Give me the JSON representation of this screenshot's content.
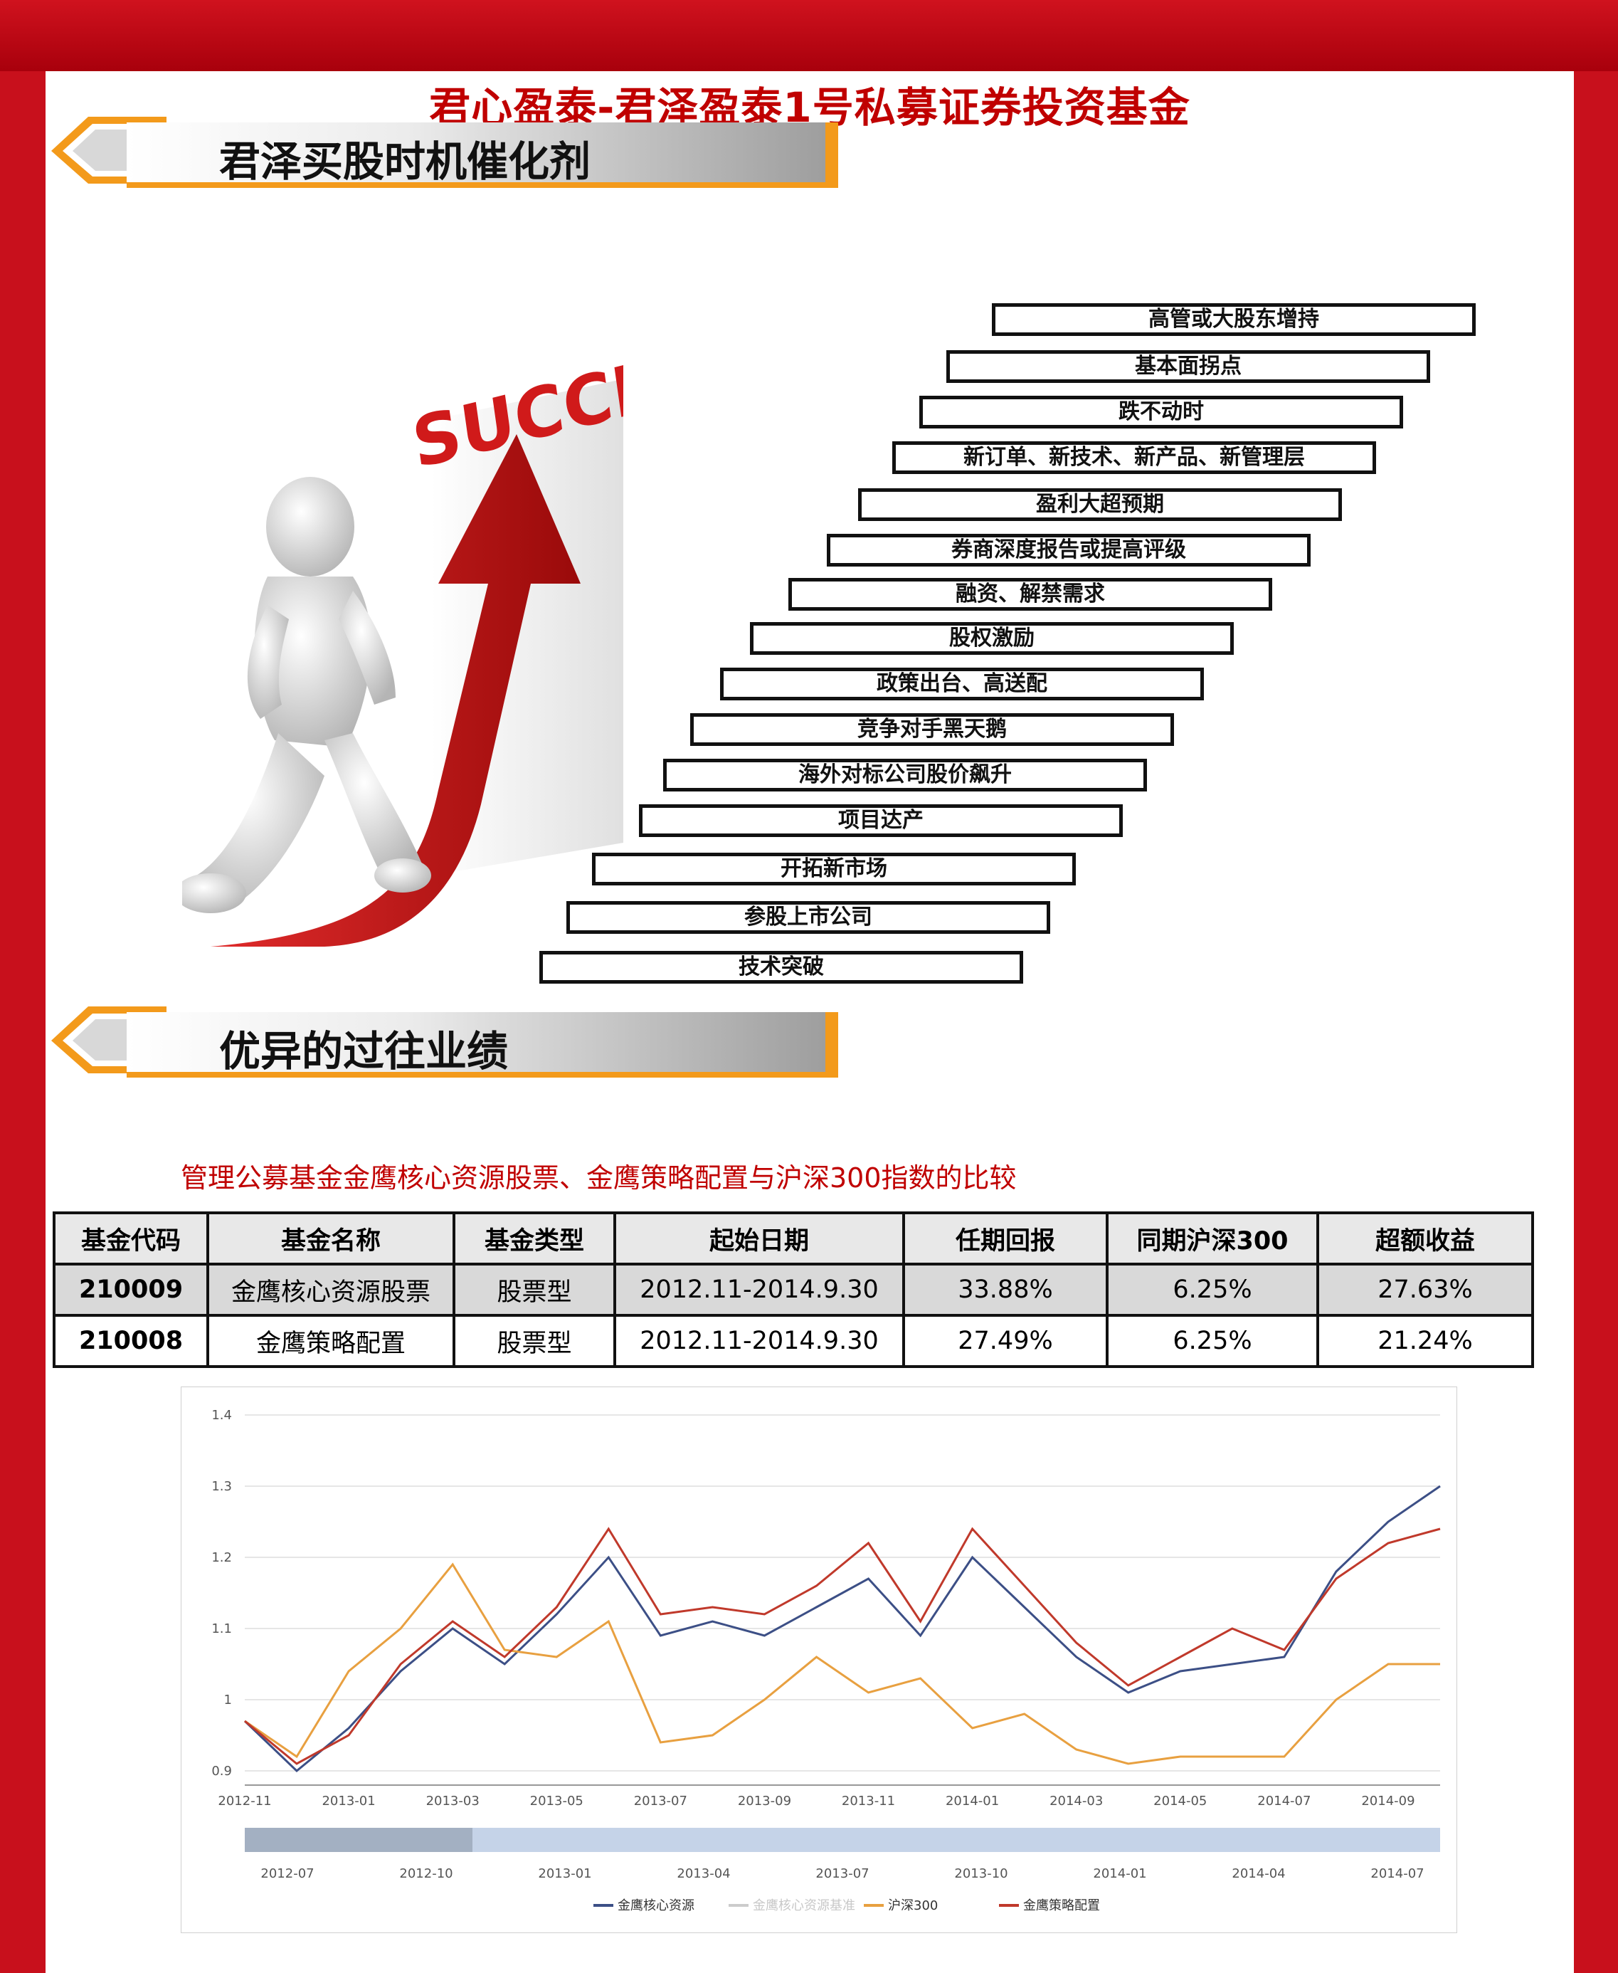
{
  "title": "君心盈泰-君泽盈泰1号私募证券投资基金",
  "section1": {
    "title": "君泽买股时机催化剂"
  },
  "illustration": {
    "sign_text": "SUCCESS"
  },
  "catalysts": [
    "高管或大股东增持",
    "基本面拐点",
    "跌不动时",
    "新订单、新技术、新产品、新管理层",
    "盈利大超预期",
    "券商深度报告或提高评级",
    "融资、解禁需求",
    "股权激励",
    "政策出台、高送配",
    "竞争对手黑天鹅",
    "海外对标公司股价飙升",
    "项目达产",
    "开拓新市场",
    "参股上市公司",
    "技术突破"
  ],
  "section2": {
    "title": "优异的过往业绩"
  },
  "comparison": {
    "subtitle": "管理公募基金金鹰核心资源股票、金鹰策略配置与沪深300指数的比较",
    "headers": [
      "基金代码",
      "基金名称",
      "基金类型",
      "起始日期",
      "任期回报",
      "同期沪深300",
      "超额收益"
    ],
    "rows": [
      [
        "210009",
        "金鹰核心资源股票",
        "股票型",
        "2012.11-2014.9.30",
        "33.88%",
        "6.25%",
        "27.63%"
      ],
      [
        "210008",
        "金鹰策略配置",
        "股票型",
        "2012.11-2014.9.30",
        "27.49%",
        "6.25%",
        "21.24%"
      ]
    ]
  },
  "chart_data": {
    "type": "line",
    "x": [
      "2012-11",
      "2012-12",
      "2013-01",
      "2013-02",
      "2013-03",
      "2013-04",
      "2013-05",
      "2013-06",
      "2013-07",
      "2013-08",
      "2013-09",
      "2013-10",
      "2013-11",
      "2013-12",
      "2014-01",
      "2014-02",
      "2014-03",
      "2014-04",
      "2014-05",
      "2014-06",
      "2014-07",
      "2014-08",
      "2014-09",
      "2014-10"
    ],
    "x_tick_labels": [
      "2012-11",
      "2013-01",
      "2013-03",
      "2013-05",
      "2013-07",
      "2013-09",
      "2013-11",
      "2014-01",
      "2014-03",
      "2014-05",
      "2014-07",
      "2014-09"
    ],
    "y_tick_labels": [
      "1.4",
      "1.3",
      "1.2",
      "1.1",
      "1",
      "0.9"
    ],
    "ylim": [
      0.88,
      1.4
    ],
    "grid": true,
    "series": [
      {
        "name": "金鹰核心资源",
        "color": "#3c4f86",
        "values": [
          0.97,
          0.9,
          0.96,
          1.04,
          1.1,
          1.05,
          1.12,
          1.2,
          1.09,
          1.11,
          1.09,
          1.13,
          1.17,
          1.09,
          1.2,
          1.13,
          1.06,
          1.01,
          1.04,
          1.05,
          1.06,
          1.18,
          1.25,
          1.3
        ]
      },
      {
        "name": "沪深300",
        "color": "#e8a040",
        "values": [
          0.97,
          0.92,
          1.04,
          1.1,
          1.19,
          1.07,
          1.06,
          1.11,
          0.94,
          0.95,
          1.0,
          1.06,
          1.01,
          1.03,
          0.96,
          0.98,
          0.93,
          0.91,
          0.92,
          0.92,
          0.92,
          1.0,
          1.05,
          1.05
        ]
      },
      {
        "name": "金鹰策略配置",
        "color": "#c0392b",
        "values": [
          0.97,
          0.91,
          0.95,
          1.05,
          1.11,
          1.06,
          1.13,
          1.24,
          1.12,
          1.13,
          1.12,
          1.16,
          1.22,
          1.11,
          1.24,
          1.16,
          1.08,
          1.02,
          1.06,
          1.1,
          1.07,
          1.17,
          1.22,
          1.24
        ]
      }
    ],
    "navigator_labels": [
      "2012-07",
      "2012-10",
      "2013-01",
      "2013-04",
      "2013-07",
      "2013-10",
      "2014-01",
      "2014-04",
      "2014-07"
    ],
    "legend": [
      "金鹰核心资源",
      "金鹰核心资源基准",
      "沪深300",
      "金鹰策略配置"
    ],
    "legend_colors": [
      "#3c4f86",
      "#cccccc",
      "#e8a040",
      "#c0392b"
    ],
    "legend_position": "bottom"
  }
}
